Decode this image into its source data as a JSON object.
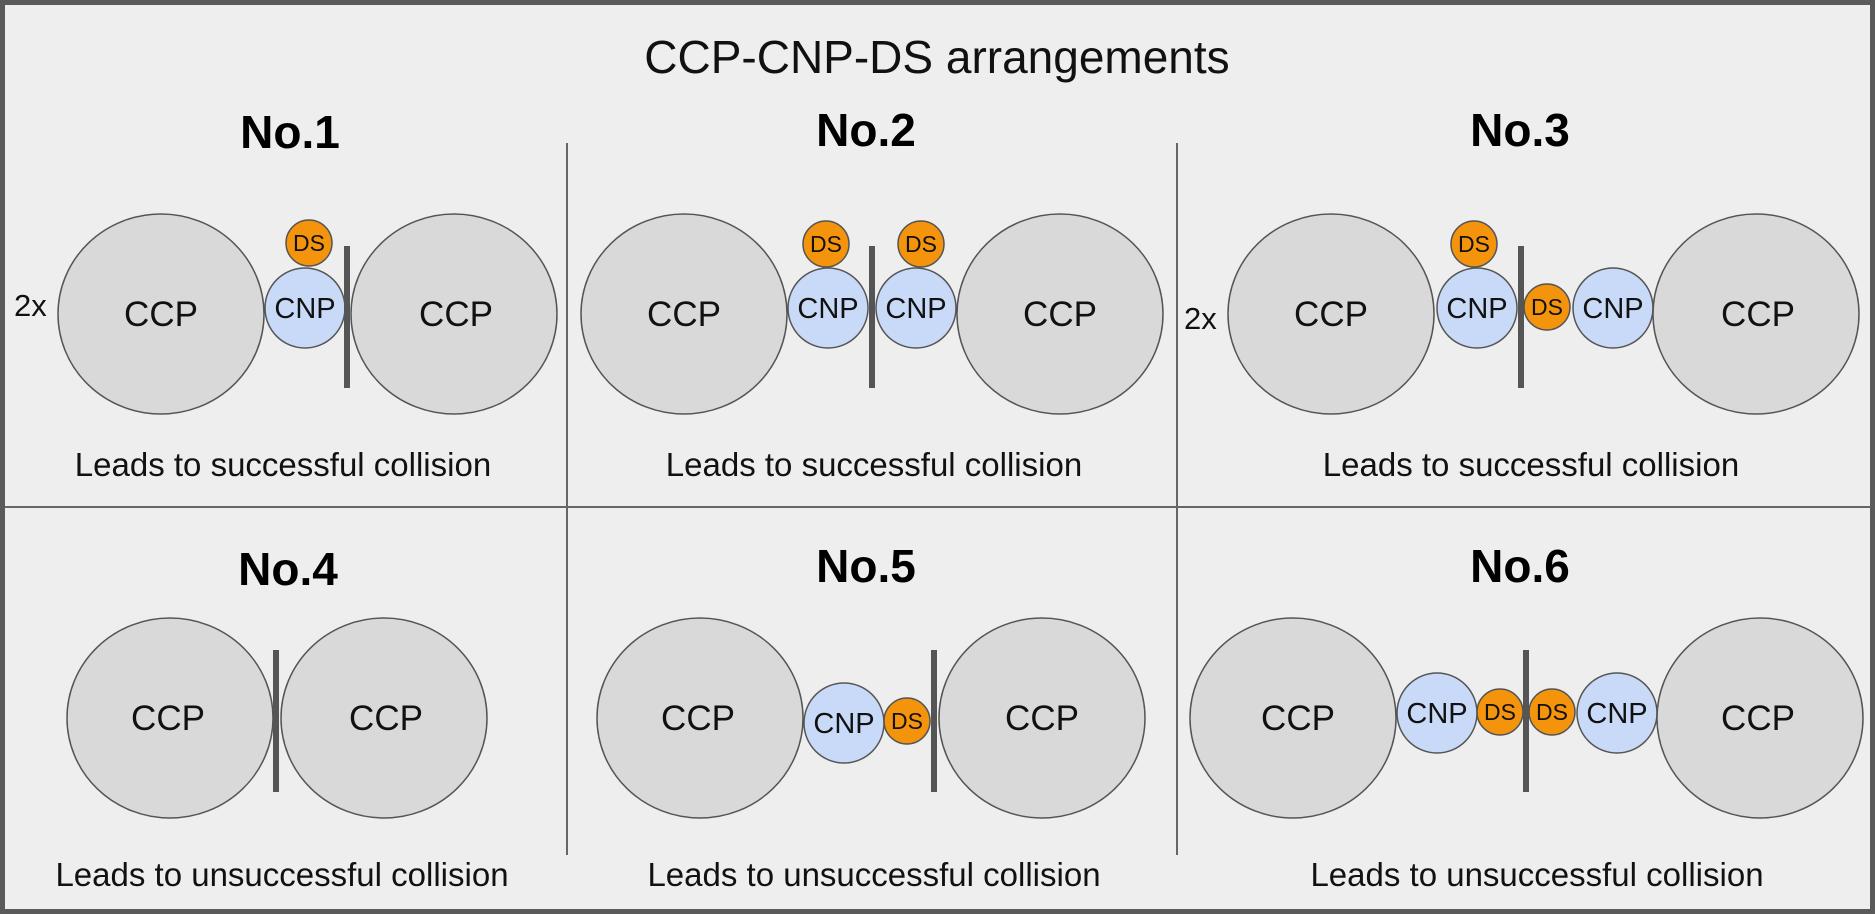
{
  "title": "CCP-CNP-DS arrangements",
  "labels": {
    "ccp": "CCP",
    "cnp": "CNP",
    "ds": "DS"
  },
  "colors": {
    "background": "#eeeeee",
    "frame": "#5a5a5a",
    "divider": "#666666",
    "barrier": "#555555",
    "ccp_fill": "#d9d9d9",
    "cnp_fill": "#c9daf8",
    "ds_fill": "#f4940c",
    "outline": "#555555"
  },
  "panels": [
    {
      "heading": "No.1",
      "multiplier": "2x",
      "caption": "Leads to successful collision"
    },
    {
      "heading": "No.2",
      "multiplier": "",
      "caption": "Leads to successful collision"
    },
    {
      "heading": "No.3",
      "multiplier": "2x",
      "caption": "Leads to successful collision"
    },
    {
      "heading": "No.4",
      "multiplier": "",
      "caption": "Leads to unsuccessful collision"
    },
    {
      "heading": "No.5",
      "multiplier": "",
      "caption": "Leads to unsuccessful collision"
    },
    {
      "heading": "No.6",
      "multiplier": "",
      "caption": "Leads to unsuccessful collision"
    }
  ]
}
